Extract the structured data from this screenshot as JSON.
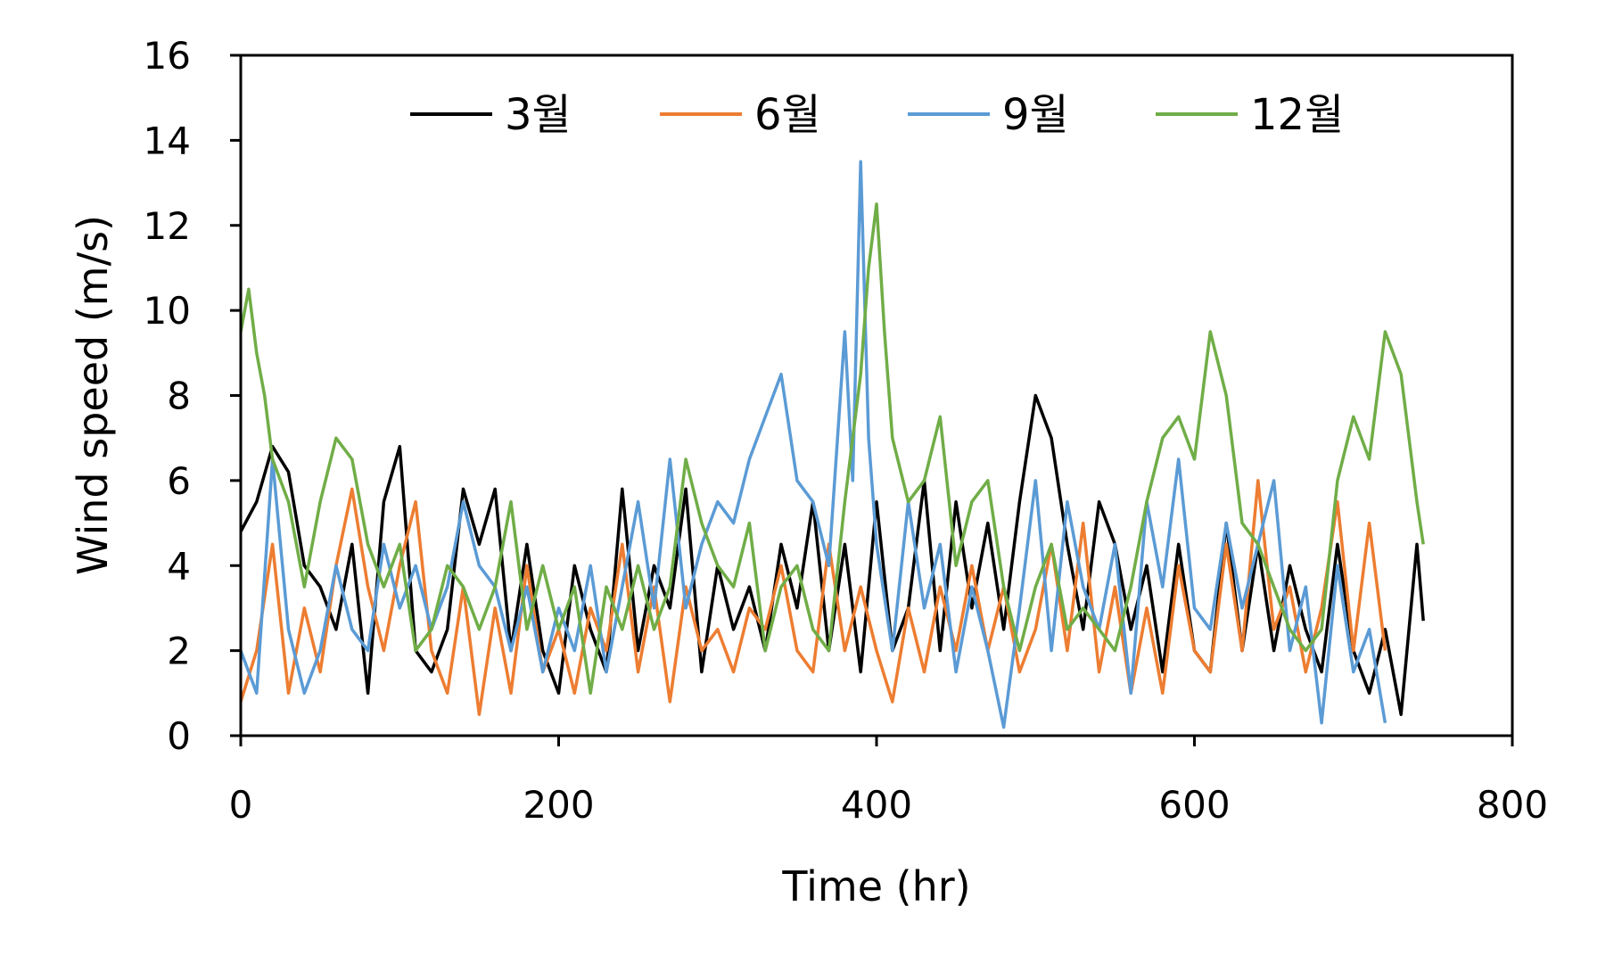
{
  "chart_data": {
    "type": "line",
    "title": "",
    "xlabel": "Time (hr)",
    "ylabel": "Wind speed (m/s)",
    "xlim": [
      0,
      800
    ],
    "ylim": [
      0,
      16
    ],
    "xticks": [
      0,
      200,
      400,
      600,
      800
    ],
    "yticks": [
      0,
      2,
      4,
      6,
      8,
      10,
      12,
      14,
      16
    ],
    "grid": false,
    "legend_position": "top",
    "series": [
      {
        "name": "3월",
        "color": "#000000",
        "x": [
          0,
          10,
          20,
          30,
          40,
          50,
          60,
          70,
          80,
          90,
          100,
          110,
          120,
          130,
          140,
          150,
          160,
          170,
          180,
          190,
          200,
          210,
          220,
          230,
          240,
          250,
          260,
          270,
          280,
          290,
          300,
          310,
          320,
          330,
          340,
          350,
          360,
          370,
          380,
          390,
          400,
          410,
          420,
          430,
          440,
          450,
          460,
          470,
          480,
          490,
          500,
          510,
          520,
          530,
          540,
          550,
          560,
          570,
          580,
          590,
          600,
          610,
          620,
          630,
          640,
          650,
          660,
          670,
          680,
          690,
          700,
          710,
          720,
          730,
          740,
          744
        ],
        "y": [
          4.8,
          5.5,
          6.8,
          6.2,
          4.0,
          3.5,
          2.5,
          4.5,
          1.0,
          5.5,
          6.8,
          2.0,
          1.5,
          2.5,
          5.8,
          4.5,
          5.8,
          2.0,
          4.5,
          2.0,
          1.0,
          4.0,
          2.5,
          1.5,
          5.8,
          2.0,
          4.0,
          3.0,
          5.8,
          1.5,
          4.0,
          2.5,
          3.5,
          2.0,
          4.5,
          3.0,
          5.5,
          2.0,
          4.5,
          1.5,
          5.5,
          2.0,
          3.0,
          6.0,
          2.0,
          5.5,
          3.0,
          5.0,
          2.5,
          5.5,
          8.0,
          7.0,
          4.5,
          2.5,
          5.5,
          4.5,
          2.5,
          4.0,
          1.5,
          4.5,
          2.0,
          1.5,
          5.0,
          2.0,
          4.5,
          2.0,
          4.0,
          2.5,
          1.5,
          4.5,
          2.0,
          1.0,
          2.5,
          0.5,
          4.5,
          2.7
        ]
      },
      {
        "name": "6월",
        "color": "#ED7D31",
        "x": [
          0,
          10,
          20,
          30,
          40,
          50,
          60,
          70,
          80,
          90,
          100,
          110,
          120,
          130,
          140,
          150,
          160,
          170,
          180,
          190,
          200,
          210,
          220,
          230,
          240,
          250,
          260,
          270,
          280,
          290,
          300,
          310,
          320,
          330,
          340,
          350,
          360,
          370,
          380,
          390,
          400,
          410,
          420,
          430,
          440,
          450,
          460,
          470,
          480,
          490,
          500,
          510,
          520,
          530,
          540,
          550,
          560,
          570,
          580,
          590,
          600,
          610,
          620,
          630,
          640,
          650,
          660,
          670,
          680,
          690,
          700,
          710,
          720
        ],
        "y": [
          0.8,
          2.0,
          4.5,
          1.0,
          3.0,
          1.5,
          4.0,
          5.8,
          3.5,
          2.0,
          4.0,
          5.5,
          2.0,
          1.0,
          3.5,
          0.5,
          3.0,
          1.0,
          4.0,
          1.5,
          2.5,
          1.0,
          3.0,
          2.0,
          4.5,
          1.5,
          3.5,
          0.8,
          3.5,
          2.0,
          2.5,
          1.5,
          3.0,
          2.5,
          4.0,
          2.0,
          1.5,
          4.5,
          2.0,
          3.5,
          2.0,
          0.8,
          3.0,
          1.5,
          3.5,
          2.0,
          4.0,
          2.0,
          3.5,
          1.5,
          2.5,
          4.5,
          2.0,
          5.0,
          1.5,
          3.5,
          1.0,
          3.0,
          1.0,
          4.0,
          2.0,
          1.5,
          4.5,
          2.0,
          6.0,
          2.5,
          3.5,
          1.5,
          3.0,
          5.5,
          2.0,
          5.0,
          2.0
        ]
      },
      {
        "name": "9월",
        "color": "#5B9BD5",
        "x": [
          0,
          10,
          20,
          30,
          40,
          50,
          60,
          70,
          80,
          90,
          100,
          110,
          120,
          130,
          140,
          150,
          160,
          170,
          180,
          190,
          200,
          210,
          220,
          230,
          240,
          250,
          260,
          270,
          280,
          290,
          300,
          310,
          320,
          330,
          340,
          350,
          360,
          370,
          380,
          385,
          390,
          395,
          400,
          410,
          420,
          430,
          440,
          450,
          460,
          470,
          480,
          490,
          500,
          510,
          520,
          530,
          540,
          550,
          560,
          570,
          580,
          590,
          600,
          610,
          620,
          630,
          640,
          650,
          660,
          670,
          680,
          690,
          700,
          710,
          720
        ],
        "y": [
          2.0,
          1.0,
          6.5,
          2.5,
          1.0,
          2.0,
          4.0,
          2.5,
          2.0,
          4.5,
          3.0,
          4.0,
          2.5,
          3.5,
          5.5,
          4.0,
          3.5,
          2.0,
          3.5,
          1.5,
          3.0,
          2.0,
          4.0,
          1.5,
          3.5,
          5.5,
          3.0,
          6.5,
          3.0,
          4.5,
          5.5,
          5.0,
          6.5,
          7.5,
          8.5,
          6.0,
          5.5,
          4.0,
          9.5,
          6.0,
          13.5,
          7.0,
          4.5,
          2.0,
          5.5,
          3.0,
          4.5,
          1.5,
          3.5,
          2.0,
          0.2,
          3.0,
          6.0,
          2.0,
          5.5,
          3.5,
          2.5,
          4.5,
          1.0,
          5.5,
          3.5,
          6.5,
          3.0,
          2.5,
          5.0,
          3.0,
          4.5,
          6.0,
          2.0,
          3.5,
          0.3,
          4.0,
          1.5,
          2.5,
          0.3
        ]
      },
      {
        "name": "12월",
        "color": "#70AD47",
        "x": [
          0,
          5,
          10,
          15,
          20,
          30,
          40,
          50,
          60,
          70,
          80,
          90,
          100,
          110,
          120,
          130,
          140,
          150,
          160,
          170,
          180,
          190,
          200,
          210,
          220,
          230,
          240,
          250,
          260,
          270,
          280,
          290,
          300,
          310,
          320,
          330,
          340,
          350,
          360,
          370,
          380,
          390,
          395,
          400,
          405,
          410,
          420,
          430,
          440,
          450,
          460,
          470,
          480,
          490,
          500,
          510,
          520,
          530,
          540,
          550,
          560,
          570,
          580,
          590,
          600,
          610,
          620,
          630,
          640,
          650,
          660,
          670,
          680,
          690,
          700,
          710,
          720,
          730,
          740,
          744
        ],
        "y": [
          9.5,
          10.5,
          9.0,
          8.0,
          6.5,
          5.5,
          3.5,
          5.5,
          7.0,
          6.5,
          4.5,
          3.5,
          4.5,
          2.0,
          2.5,
          4.0,
          3.5,
          2.5,
          3.5,
          5.5,
          2.5,
          4.0,
          2.5,
          3.5,
          1.0,
          3.5,
          2.5,
          4.0,
          2.5,
          3.5,
          6.5,
          5.0,
          4.0,
          3.5,
          5.0,
          2.0,
          3.5,
          4.0,
          2.5,
          2.0,
          5.5,
          8.5,
          11.0,
          12.5,
          9.5,
          7.0,
          5.5,
          6.0,
          7.5,
          4.0,
          5.5,
          6.0,
          3.5,
          2.0,
          3.5,
          4.5,
          2.5,
          3.0,
          2.5,
          2.0,
          3.5,
          5.5,
          7.0,
          7.5,
          6.5,
          9.5,
          8.0,
          5.0,
          4.5,
          3.5,
          2.5,
          2.0,
          2.5,
          6.0,
          7.5,
          6.5,
          9.5,
          8.5,
          5.5,
          4.5
        ]
      }
    ]
  }
}
